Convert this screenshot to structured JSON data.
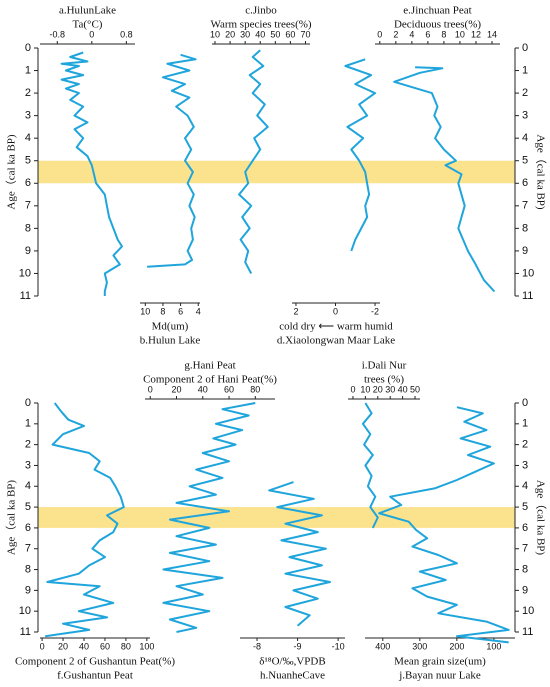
{
  "chart_data": [
    {
      "type": "line",
      "ylabel": "Age（cal ka BP)",
      "ylim": [
        0,
        11
      ],
      "yticks": [
        0,
        1,
        2,
        3,
        4,
        5,
        6,
        7,
        8,
        9,
        10,
        11
      ],
      "highlight": [
        5,
        6
      ],
      "highlight_color": "#fbe38e",
      "color": "#1fa5dc",
      "series": [
        {
          "labels": [
            "a.HulunLake",
            "Ta(°C)"
          ],
          "axis": "top",
          "xlim": [
            -1.2,
            1.0
          ],
          "xticks": [
            -0.8,
            0,
            0.8
          ],
          "ages": [
            0.2,
            0.4,
            0.6,
            0.7,
            0.8,
            1.0,
            1.2,
            1.4,
            1.6,
            1.8,
            2.0,
            2.3,
            2.6,
            3.0,
            3.3,
            3.6,
            4.0,
            4.4,
            4.8,
            5.2,
            5.6,
            6.0,
            6.5,
            7.0,
            7.5,
            8.0,
            8.5,
            8.8,
            9.2,
            9.6,
            10.0,
            10.4,
            10.8,
            11.0
          ],
          "values": [
            -0.2,
            -0.5,
            -0.1,
            -0.7,
            -0.3,
            -0.6,
            -0.2,
            -0.7,
            -0.3,
            -0.6,
            -0.3,
            -0.5,
            -0.2,
            -0.4,
            -0.1,
            -0.4,
            -0.2,
            -0.35,
            -0.1,
            0.0,
            0.05,
            0.1,
            0.3,
            0.35,
            0.4,
            0.5,
            0.6,
            0.7,
            0.5,
            0.65,
            0.3,
            0.35,
            0.3,
            0.3
          ]
        },
        {
          "labels": [
            "Md(um)",
            "b.Hulun Lake"
          ],
          "axis": "bottom",
          "xlim": [
            10.6,
            3.8
          ],
          "xticks": [
            10,
            8,
            6,
            4
          ],
          "ages": [
            0.3,
            0.5,
            0.7,
            1.0,
            1.3,
            1.6,
            1.9,
            2.2,
            2.6,
            3.0,
            3.5,
            4.0,
            4.5,
            5.0,
            5.5,
            6.0,
            6.5,
            7.0,
            7.5,
            8.0,
            8.5,
            9.0,
            9.4,
            9.6,
            9.7
          ],
          "values": [
            6,
            4.3,
            7.5,
            5,
            8,
            5.5,
            7,
            5,
            6.5,
            5.2,
            4.5,
            5.5,
            4.8,
            5.5,
            4.6,
            5.2,
            4.5,
            5.0,
            4.4,
            4.8,
            4.6,
            5.2,
            4.7,
            5.5,
            9.8
          ]
        },
        {
          "labels": [
            "c.Jinbo",
            "Warm species trees(%)"
          ],
          "axis": "top",
          "xlim": [
            8,
            73
          ],
          "xticks": [
            10,
            20,
            30,
            40,
            50,
            60,
            70
          ],
          "ages": [
            0.1,
            0.4,
            0.8,
            1.2,
            1.6,
            2.0,
            2.5,
            3.0,
            3.5,
            4.0,
            4.5,
            5.0,
            5.5,
            6.0,
            6.5,
            7.0,
            7.5,
            8.0,
            8.5,
            9.0,
            9.5,
            10.0
          ],
          "values": [
            40,
            35,
            42,
            33,
            40,
            35,
            43,
            38,
            45,
            36,
            40,
            35,
            30,
            32,
            26,
            34,
            28,
            33,
            27,
            32,
            30,
            34
          ]
        },
        {
          "labels": [
            "cold dry ⟵ warm humid",
            "d.Xiaolongwan Maar Lake"
          ],
          "axis": "bottom",
          "xlim": [
            2.2,
            -2.25
          ],
          "xticks": [
            2,
            0,
            -2
          ],
          "ages": [
            0.5,
            0.8,
            1.2,
            1.6,
            2.0,
            2.5,
            3.0,
            3.5,
            4.0,
            4.5,
            5.0,
            5.5,
            6.0,
            6.5,
            7.0,
            7.5,
            8.0,
            8.5,
            9.0
          ],
          "values": [
            -1.5,
            -0.5,
            -1.8,
            -1.0,
            -2.0,
            -1.2,
            -1.6,
            -0.6,
            -1.4,
            -0.8,
            -1.2,
            -1.5,
            -1.6,
            -1.7,
            -1.5,
            -1.6,
            -1.3,
            -1.0,
            -0.8
          ]
        },
        {
          "labels": [
            "e.Jinchuan Peat",
            "Deciduous trees(%)"
          ],
          "axis": "top",
          "xlim": [
            -0.6,
            15
          ],
          "xticks": [
            0,
            2,
            4,
            6,
            8,
            10,
            12,
            14
          ],
          "ages": [
            0.85,
            0.9,
            1.1,
            1.5,
            2.0,
            2.6,
            3.0,
            3.5,
            4.0,
            4.5,
            5.0,
            5.2,
            5.6,
            6.0,
            7.0,
            8.0,
            9.0,
            9.5,
            10.3,
            10.8
          ],
          "values": [
            4.4,
            7.8,
            5.0,
            1.8,
            6.5,
            7.2,
            6.8,
            7.6,
            6.9,
            8.0,
            9.5,
            8.2,
            10.2,
            9.8,
            10.6,
            9.8,
            11.0,
            11.8,
            13.0,
            14.3
          ]
        }
      ]
    },
    {
      "type": "line",
      "ylabel": "Age（cal ka BP)",
      "ylim": [
        0,
        11
      ],
      "yticks": [
        0,
        1,
        2,
        3,
        4,
        5,
        6,
        7,
        8,
        9,
        10,
        11
      ],
      "highlight": [
        5,
        6
      ],
      "highlight_color": "#fbe38e",
      "color": "#1fa5dc",
      "series": [
        {
          "labels": [
            "Component 2 of Gushantun Peat(%)",
            "f.Gushantun Peat"
          ],
          "axis": "bottom",
          "xlim": [
            -2,
            103
          ],
          "xticks": [
            0,
            20,
            40,
            60,
            80,
            100
          ],
          "ages": [
            0,
            0.4,
            0.8,
            1.1,
            1.5,
            2.0,
            2.4,
            2.8,
            3.2,
            3.6,
            4.0,
            4.5,
            5.0,
            5.4,
            5.8,
            6.2,
            6.6,
            7.0,
            7.4,
            7.8,
            8.2,
            8.6,
            8.8,
            9.2,
            9.6,
            10.0,
            10.3,
            10.6,
            10.9,
            11.2
          ],
          "values": [
            12,
            18,
            25,
            40,
            20,
            10,
            45,
            55,
            50,
            65,
            70,
            75,
            78,
            62,
            72,
            68,
            55,
            48,
            60,
            45,
            35,
            5,
            55,
            40,
            68,
            35,
            62,
            20,
            45,
            3
          ]
        },
        {
          "labels": [
            "g.Hani Peat",
            "Component 2 of Hani Peat(%)"
          ],
          "axis": "top",
          "xlim": [
            -4,
            95
          ],
          "xticks": [
            0,
            20,
            40,
            60,
            80
          ],
          "ages": [
            0,
            0.3,
            0.6,
            1.0,
            1.3,
            1.7,
            2.0,
            2.4,
            2.8,
            3.2,
            3.6,
            4.0,
            4.4,
            4.8,
            5.2,
            5.6,
            6.0,
            6.4,
            6.8,
            7.2,
            7.6,
            8.0,
            8.4,
            8.8,
            9.2,
            9.6,
            10.0,
            10.4,
            10.8,
            11.0
          ],
          "values": [
            80,
            55,
            75,
            50,
            70,
            48,
            65,
            40,
            60,
            35,
            55,
            30,
            50,
            20,
            60,
            15,
            45,
            20,
            50,
            15,
            45,
            10,
            55,
            20,
            40,
            10,
            45,
            15,
            35,
            20
          ]
        },
        {
          "labels": [
            "δ¹⁸O/‰,VPDB",
            "h.NuanheCave"
          ],
          "axis": "bottom",
          "xlim": [
            -7.58,
            -10.17
          ],
          "xticks": [
            -8,
            -9,
            -10
          ],
          "ages": [
            3.8,
            4.2,
            4.6,
            5.0,
            5.4,
            5.8,
            6.2,
            6.6,
            7.0,
            7.4,
            7.8,
            8.2,
            8.6,
            9.0,
            9.4,
            9.8,
            10.2,
            10.7
          ],
          "values": [
            -8.9,
            -8.3,
            -9.4,
            -8.5,
            -9.6,
            -8.7,
            -9.5,
            -8.6,
            -9.7,
            -8.8,
            -9.6,
            -8.7,
            -9.8,
            -8.9,
            -9.5,
            -8.7,
            -9.3,
            -9.0
          ]
        },
        {
          "labels": [
            "i.Dali Nur",
            "trees (%)"
          ],
          "axis": "top",
          "xlim": [
            -4,
            54
          ],
          "xticks": [
            0,
            10,
            20,
            30,
            40,
            50
          ],
          "ages": [
            0,
            0.5,
            1.0,
            1.5,
            2.0,
            2.5,
            3.0,
            3.5,
            4.0,
            4.5,
            5.0,
            5.5,
            6.0
          ],
          "values": [
            10,
            15,
            8,
            14,
            9,
            16,
            10,
            15,
            12,
            18,
            14,
            20,
            16
          ]
        },
        {
          "labels": [
            "Mean grain size(um)",
            "j.Bayan nuur Lake"
          ],
          "axis": "bottom",
          "xlim": [
            448,
            43
          ],
          "xticks": [
            400,
            300,
            200,
            100
          ],
          "ages": [
            0.2,
            0.5,
            0.9,
            1.3,
            1.7,
            2.1,
            2.5,
            2.9,
            3.3,
            3.7,
            4.1,
            4.5,
            4.9,
            5.3,
            5.7,
            6.1,
            6.5,
            6.9,
            7.3,
            7.7,
            8.1,
            8.5,
            8.9,
            9.3,
            9.7,
            10.1,
            10.5,
            10.9,
            11.2,
            11.5
          ],
          "values": [
            200,
            130,
            180,
            120,
            190,
            110,
            170,
            100,
            150,
            200,
            260,
            380,
            350,
            410,
            330,
            310,
            280,
            320,
            250,
            200,
            300,
            230,
            320,
            280,
            200,
            250,
            120,
            60,
            200,
            60
          ]
        }
      ]
    }
  ]
}
